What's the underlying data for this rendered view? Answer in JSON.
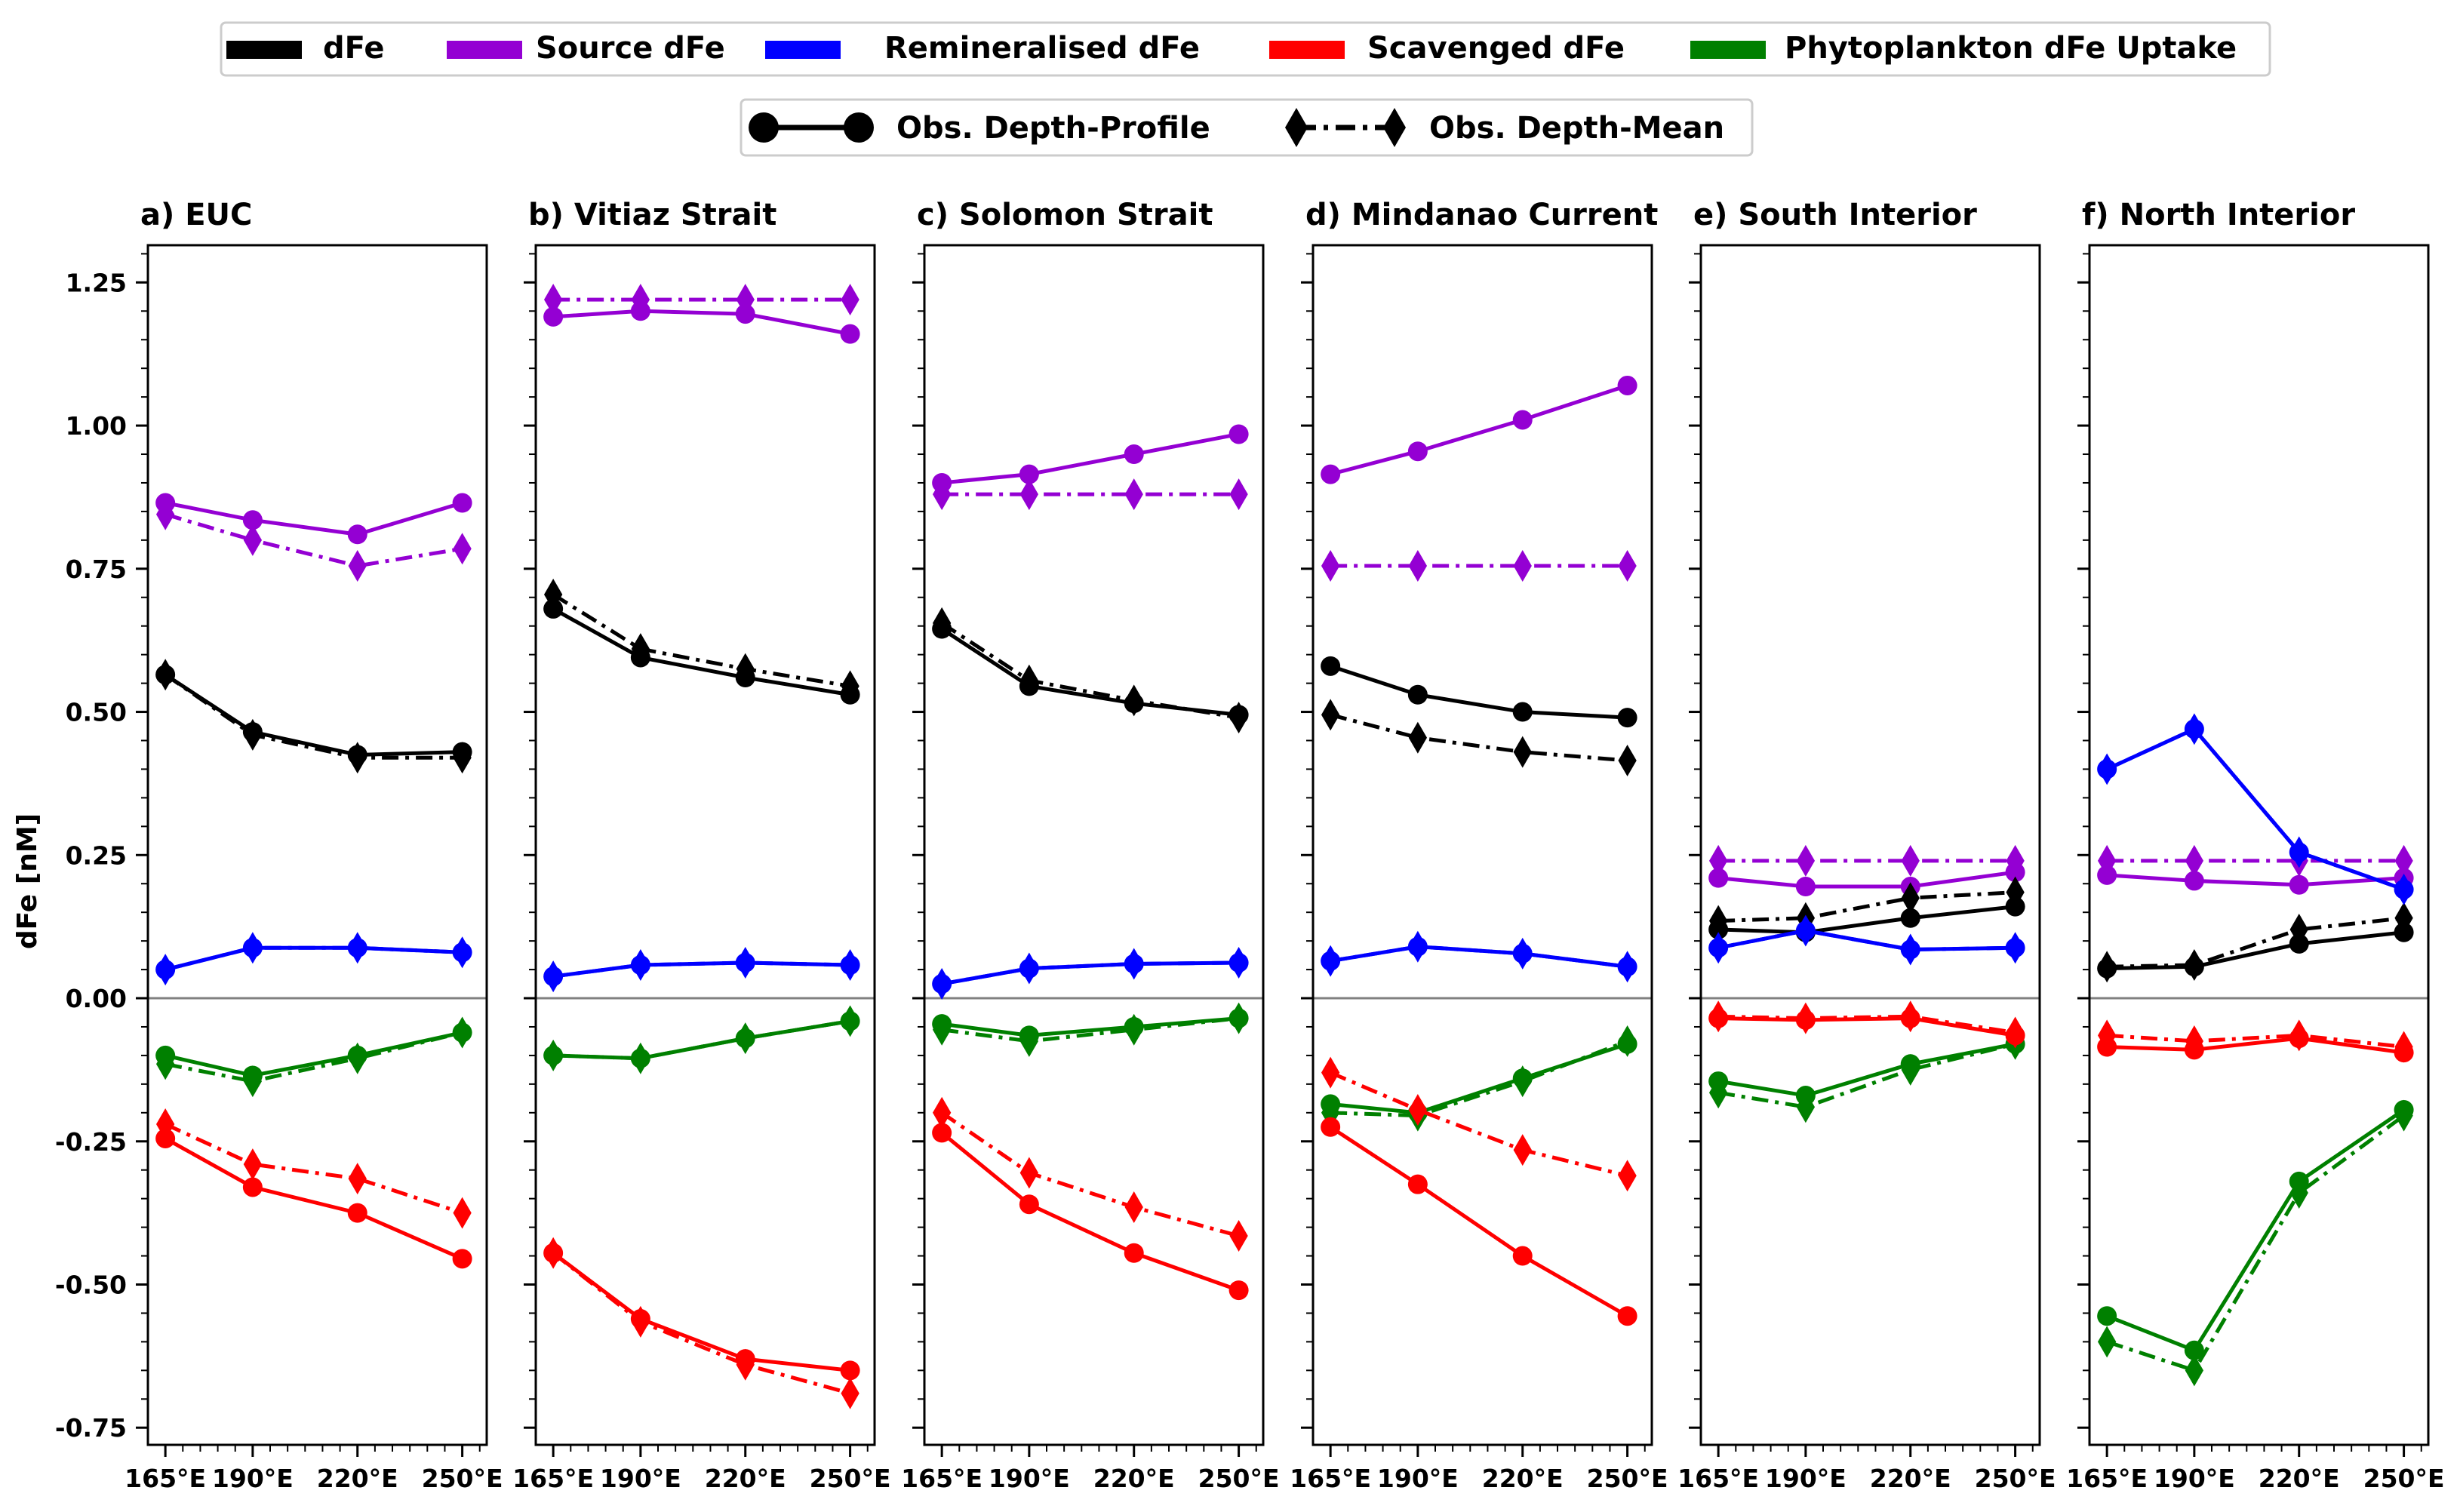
{
  "chart_data": {
    "type": "line",
    "ylabel": "dFe [nM]",
    "ylim": [
      -0.78,
      1.315
    ],
    "yticks": [
      -0.75,
      -0.5,
      -0.25,
      0.0,
      0.25,
      0.5,
      0.75,
      1.0,
      1.25
    ],
    "ytick_labels": [
      "-0.75",
      "-0.50",
      "-0.25",
      "0.00",
      "0.25",
      "0.50",
      "0.75",
      "1.00",
      "1.25"
    ],
    "x": [
      165,
      190,
      220,
      250
    ],
    "xtick_labels": [
      "165°E",
      "190°E",
      "220°E",
      "250°E"
    ],
    "xlim": [
      160,
      257
    ],
    "legend_variables": [
      {
        "label": "dFe",
        "color": "#000000"
      },
      {
        "label": "Source dFe",
        "color": "#9400d3"
      },
      {
        "label": "Remineralised dFe",
        "color": "#0000ff"
      },
      {
        "label": "Scavenged dFe",
        "color": "#ff0000"
      },
      {
        "label": "Phytoplankton dFe Uptake",
        "color": "#008000"
      }
    ],
    "legend_styles": [
      {
        "label": "Obs. Depth-Profile",
        "style": "solid",
        "marker": "circle"
      },
      {
        "label": "Obs. Depth-Mean",
        "style": "dashdot",
        "marker": "diamond"
      }
    ],
    "panels": [
      {
        "title": "a) EUC",
        "series": [
          {
            "variable": "Source dFe",
            "style": "solid",
            "values": [
              0.865,
              0.835,
              0.81,
              0.865
            ]
          },
          {
            "variable": "Source dFe",
            "style": "dashdot",
            "values": [
              0.845,
              0.8,
              0.755,
              0.785
            ]
          },
          {
            "variable": "dFe",
            "style": "solid",
            "values": [
              0.565,
              0.465,
              0.425,
              0.43
            ]
          },
          {
            "variable": "dFe",
            "style": "dashdot",
            "values": [
              0.565,
              0.46,
              0.42,
              0.42
            ]
          },
          {
            "variable": "Remineralised dFe",
            "style": "solid",
            "values": [
              0.05,
              0.088,
              0.088,
              0.08
            ]
          },
          {
            "variable": "Remineralised dFe",
            "style": "dashdot",
            "values": [
              0.05,
              0.088,
              0.088,
              0.08
            ]
          },
          {
            "variable": "Phytoplankton dFe Uptake",
            "style": "solid",
            "values": [
              -0.1,
              -0.135,
              -0.1,
              -0.06
            ]
          },
          {
            "variable": "Phytoplankton dFe Uptake",
            "style": "dashdot",
            "values": [
              -0.115,
              -0.145,
              -0.105,
              -0.06
            ]
          },
          {
            "variable": "Scavenged dFe",
            "style": "solid",
            "values": [
              -0.245,
              -0.33,
              -0.375,
              -0.455
            ]
          },
          {
            "variable": "Scavenged dFe",
            "style": "dashdot",
            "values": [
              -0.22,
              -0.29,
              -0.315,
              -0.375
            ]
          }
        ]
      },
      {
        "title": "b) Vitiaz Strait",
        "series": [
          {
            "variable": "Source dFe",
            "style": "solid",
            "values": [
              1.19,
              1.2,
              1.195,
              1.16
            ]
          },
          {
            "variable": "Source dFe",
            "style": "dashdot",
            "values": [
              1.22,
              1.22,
              1.22,
              1.22
            ]
          },
          {
            "variable": "dFe",
            "style": "solid",
            "values": [
              0.68,
              0.595,
              0.56,
              0.53
            ]
          },
          {
            "variable": "dFe",
            "style": "dashdot",
            "values": [
              0.705,
              0.61,
              0.575,
              0.545
            ]
          },
          {
            "variable": "Remineralised dFe",
            "style": "solid",
            "values": [
              0.038,
              0.058,
              0.062,
              0.058
            ]
          },
          {
            "variable": "Remineralised dFe",
            "style": "dashdot",
            "values": [
              0.038,
              0.058,
              0.062,
              0.058
            ]
          },
          {
            "variable": "Phytoplankton dFe Uptake",
            "style": "solid",
            "values": [
              -0.1,
              -0.105,
              -0.07,
              -0.04
            ]
          },
          {
            "variable": "Phytoplankton dFe Uptake",
            "style": "dashdot",
            "values": [
              -0.1,
              -0.105,
              -0.07,
              -0.04
            ]
          },
          {
            "variable": "Scavenged dFe",
            "style": "solid",
            "values": [
              -0.445,
              -0.56,
              -0.63,
              -0.65
            ]
          },
          {
            "variable": "Scavenged dFe",
            "style": "dashdot",
            "values": [
              -0.445,
              -0.565,
              -0.64,
              -0.69
            ]
          }
        ]
      },
      {
        "title": "c) Solomon Strait",
        "series": [
          {
            "variable": "Source dFe",
            "style": "solid",
            "values": [
              0.9,
              0.915,
              0.95,
              0.985
            ]
          },
          {
            "variable": "Source dFe",
            "style": "dashdot",
            "values": [
              0.88,
              0.88,
              0.88,
              0.88
            ]
          },
          {
            "variable": "dFe",
            "style": "solid",
            "values": [
              0.645,
              0.545,
              0.515,
              0.495
            ]
          },
          {
            "variable": "dFe",
            "style": "dashdot",
            "values": [
              0.655,
              0.555,
              0.52,
              0.49
            ]
          },
          {
            "variable": "Remineralised dFe",
            "style": "solid",
            "values": [
              0.025,
              0.052,
              0.06,
              0.062
            ]
          },
          {
            "variable": "Remineralised dFe",
            "style": "dashdot",
            "values": [
              0.025,
              0.052,
              0.06,
              0.062
            ]
          },
          {
            "variable": "Phytoplankton dFe Uptake",
            "style": "solid",
            "values": [
              -0.045,
              -0.065,
              -0.05,
              -0.035
            ]
          },
          {
            "variable": "Phytoplankton dFe Uptake",
            "style": "dashdot",
            "values": [
              -0.055,
              -0.075,
              -0.055,
              -0.035
            ]
          },
          {
            "variable": "Scavenged dFe",
            "style": "solid",
            "values": [
              -0.235,
              -0.36,
              -0.445,
              -0.51
            ]
          },
          {
            "variable": "Scavenged dFe",
            "style": "dashdot",
            "values": [
              -0.2,
              -0.305,
              -0.365,
              -0.415
            ]
          }
        ]
      },
      {
        "title": "d) Mindanao Current",
        "series": [
          {
            "variable": "Source dFe",
            "style": "solid",
            "values": [
              0.915,
              0.955,
              1.01,
              1.07
            ]
          },
          {
            "variable": "Source dFe",
            "style": "dashdot",
            "values": [
              0.755,
              0.755,
              0.755,
              0.755
            ]
          },
          {
            "variable": "dFe",
            "style": "solid",
            "values": [
              0.58,
              0.53,
              0.5,
              0.49
            ]
          },
          {
            "variable": "dFe",
            "style": "dashdot",
            "values": [
              0.495,
              0.455,
              0.43,
              0.415
            ]
          },
          {
            "variable": "Remineralised dFe",
            "style": "solid",
            "values": [
              0.065,
              0.09,
              0.078,
              0.055
            ]
          },
          {
            "variable": "Remineralised dFe",
            "style": "dashdot",
            "values": [
              0.065,
              0.09,
              0.078,
              0.055
            ]
          },
          {
            "variable": "Phytoplankton dFe Uptake",
            "style": "solid",
            "values": [
              -0.185,
              -0.2,
              -0.14,
              -0.08
            ]
          },
          {
            "variable": "Phytoplankton dFe Uptake",
            "style": "dashdot",
            "values": [
              -0.2,
              -0.205,
              -0.145,
              -0.075
            ]
          },
          {
            "variable": "Scavenged dFe",
            "style": "solid",
            "values": [
              -0.225,
              -0.325,
              -0.45,
              -0.555
            ]
          },
          {
            "variable": "Scavenged dFe",
            "style": "dashdot",
            "values": [
              -0.13,
              -0.195,
              -0.265,
              -0.31
            ]
          }
        ]
      },
      {
        "title": "e) South Interior",
        "series": [
          {
            "variable": "Source dFe",
            "style": "solid",
            "values": [
              0.21,
              0.195,
              0.195,
              0.22
            ]
          },
          {
            "variable": "Source dFe",
            "style": "dashdot",
            "values": [
              0.24,
              0.24,
              0.24,
              0.24
            ]
          },
          {
            "variable": "dFe",
            "style": "solid",
            "values": [
              0.12,
              0.115,
              0.14,
              0.16
            ]
          },
          {
            "variable": "dFe",
            "style": "dashdot",
            "values": [
              0.135,
              0.14,
              0.175,
              0.185
            ]
          },
          {
            "variable": "Remineralised dFe",
            "style": "solid",
            "values": [
              0.088,
              0.118,
              0.085,
              0.088
            ]
          },
          {
            "variable": "Remineralised dFe",
            "style": "dashdot",
            "values": [
              0.088,
              0.118,
              0.085,
              0.088
            ]
          },
          {
            "variable": "Phytoplankton dFe Uptake",
            "style": "solid",
            "values": [
              -0.145,
              -0.17,
              -0.115,
              -0.08
            ]
          },
          {
            "variable": "Phytoplankton dFe Uptake",
            "style": "dashdot",
            "values": [
              -0.165,
              -0.19,
              -0.125,
              -0.08
            ]
          },
          {
            "variable": "Scavenged dFe",
            "style": "solid",
            "values": [
              -0.035,
              -0.038,
              -0.035,
              -0.065
            ]
          },
          {
            "variable": "Scavenged dFe",
            "style": "dashdot",
            "values": [
              -0.032,
              -0.035,
              -0.032,
              -0.06
            ]
          }
        ]
      },
      {
        "title": "f) North Interior",
        "series": [
          {
            "variable": "Source dFe",
            "style": "solid",
            "values": [
              0.215,
              0.205,
              0.198,
              0.21
            ]
          },
          {
            "variable": "Source dFe",
            "style": "dashdot",
            "values": [
              0.24,
              0.24,
              0.24,
              0.24
            ]
          },
          {
            "variable": "dFe",
            "style": "solid",
            "values": [
              0.052,
              0.055,
              0.095,
              0.115
            ]
          },
          {
            "variable": "dFe",
            "style": "dashdot",
            "values": [
              0.055,
              0.058,
              0.12,
              0.14
            ]
          },
          {
            "variable": "Remineralised dFe",
            "style": "solid",
            "values": [
              0.4,
              0.47,
              0.255,
              0.19
            ]
          },
          {
            "variable": "Remineralised dFe",
            "style": "dashdot",
            "values": [
              0.4,
              0.47,
              0.255,
              0.19
            ]
          },
          {
            "variable": "Phytoplankton dFe Uptake",
            "style": "solid",
            "values": [
              -0.555,
              -0.615,
              -0.32,
              -0.195
            ]
          },
          {
            "variable": "Phytoplankton dFe Uptake",
            "style": "dashdot",
            "values": [
              -0.6,
              -0.65,
              -0.34,
              -0.205
            ]
          },
          {
            "variable": "Scavenged dFe",
            "style": "solid",
            "values": [
              -0.085,
              -0.09,
              -0.07,
              -0.095
            ]
          },
          {
            "variable": "Scavenged dFe",
            "style": "dashdot",
            "values": [
              -0.065,
              -0.075,
              -0.065,
              -0.085
            ]
          }
        ]
      }
    ]
  }
}
